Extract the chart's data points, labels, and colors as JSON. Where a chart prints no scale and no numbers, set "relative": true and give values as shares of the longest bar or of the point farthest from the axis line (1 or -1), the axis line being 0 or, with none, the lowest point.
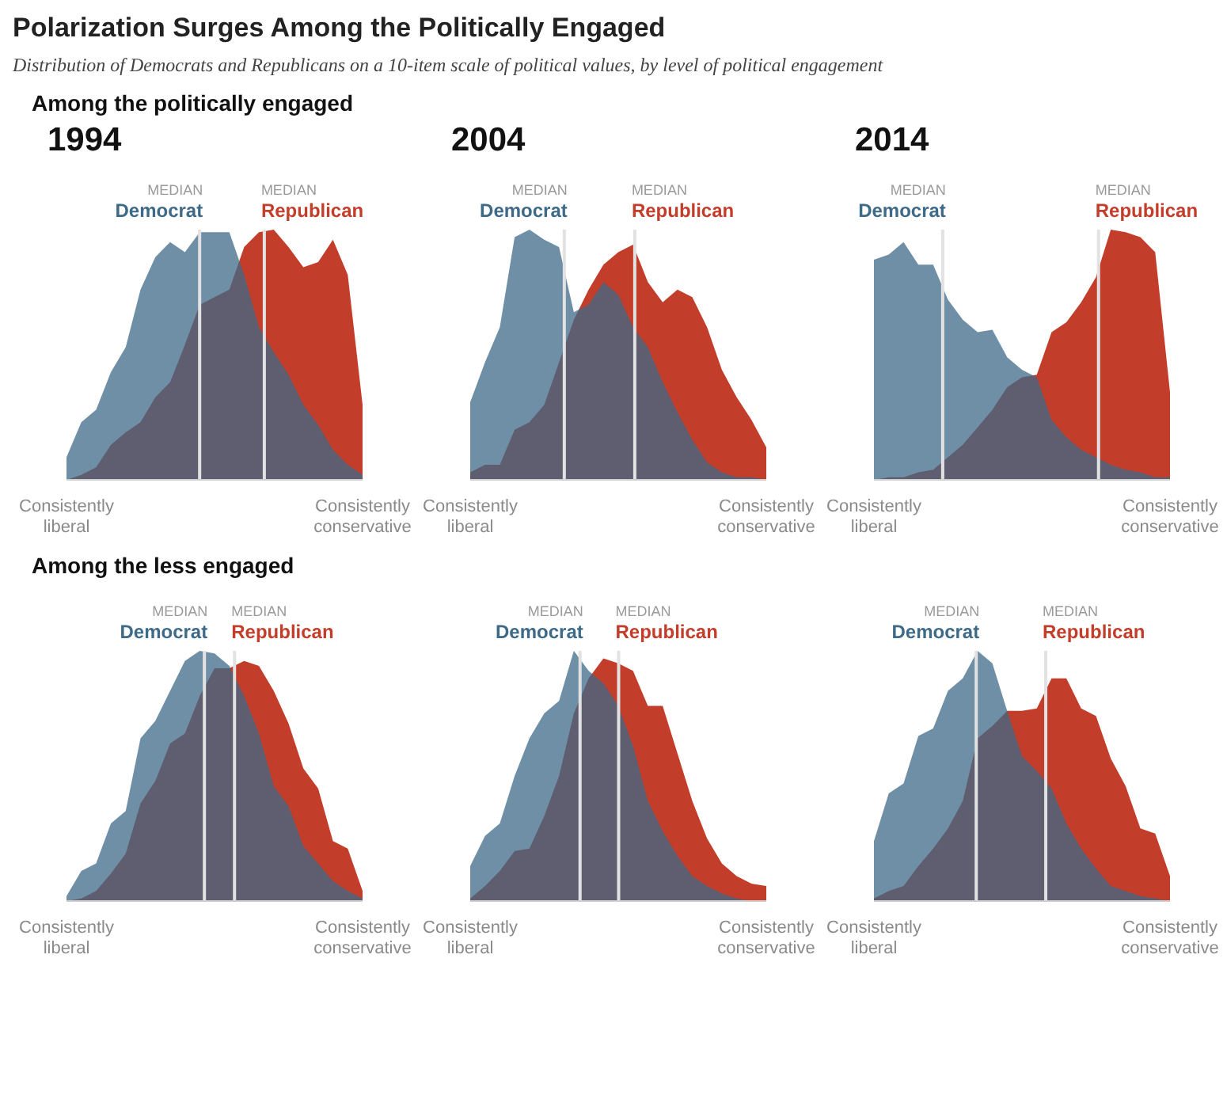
{
  "chart_data": [
    {
      "type": "area",
      "title": "1994",
      "annotations": [
        "Polarization Surges Among the Politically Engaged",
        "Distribution of Democrats and Republicans on a 10-item scale of political values, by level of political engagement",
        "Among the politically engaged",
        "MEDIAN",
        "MEDIAN"
      ],
      "relative": true,
      "categories": [
        "Consistently liberal",
        null,
        null,
        null,
        null,
        null,
        null,
        null,
        null,
        null,
        null,
        null,
        null,
        null,
        null,
        null,
        null,
        null,
        null,
        null,
        "Consistently conservative"
      ],
      "tick_labels": "x",
      "series": [
        {
          "name": "Republican",
          "color": "#c33d2b",
          "values": [
            0,
            0.02,
            0.05,
            0.14,
            0.19,
            0.23,
            0.33,
            0.39,
            0.54,
            0.7,
            0.73,
            0.76,
            0.93,
            0.99,
            1.0,
            0.93,
            0.85,
            0.87,
            0.96,
            0.82,
            0.3
          ]
        },
        {
          "name": "Democrat",
          "color": "#3e6a88",
          "values": [
            0.09,
            0.23,
            0.28,
            0.43,
            0.53,
            0.76,
            0.89,
            0.95,
            0.91,
            0.99,
            0.99,
            0.99,
            0.82,
            0.61,
            0.51,
            0.42,
            0.3,
            0.22,
            0.12,
            0.06,
            0.02
          ]
        }
      ]
    },
    {
      "type": "area",
      "title": "2004",
      "annotations": [
        "MEDIAN",
        "MEDIAN"
      ],
      "relative": true,
      "categories": [
        "Consistently liberal",
        null,
        null,
        null,
        null,
        null,
        null,
        null,
        null,
        null,
        null,
        null,
        null,
        null,
        null,
        null,
        null,
        null,
        null,
        null,
        "Consistently conservative"
      ],
      "tick_labels": "x",
      "series": [
        {
          "name": "Republican",
          "color": "#c33d2b",
          "values": [
            0.03,
            0.06,
            0.06,
            0.2,
            0.23,
            0.3,
            0.47,
            0.64,
            0.76,
            0.86,
            0.91,
            0.94,
            0.79,
            0.71,
            0.76,
            0.73,
            0.61,
            0.44,
            0.33,
            0.24,
            0.13
          ]
        },
        {
          "name": "Democrat",
          "color": "#3e6a88",
          "values": [
            0.31,
            0.47,
            0.61,
            0.97,
            1.0,
            0.96,
            0.93,
            0.67,
            0.7,
            0.79,
            0.74,
            0.61,
            0.53,
            0.39,
            0.27,
            0.16,
            0.07,
            0.03,
            0.01,
            0.01,
            0
          ]
        }
      ]
    },
    {
      "type": "area",
      "title": "2014",
      "annotations": [
        "MEDIAN",
        "MEDIAN"
      ],
      "relative": true,
      "categories": [
        "Consistently liberal",
        null,
        null,
        null,
        null,
        null,
        null,
        null,
        null,
        null,
        null,
        null,
        null,
        null,
        null,
        null,
        null,
        null,
        null,
        null,
        "Consistently conservative"
      ],
      "tick_labels": "x",
      "series": [
        {
          "name": "Republican",
          "color": "#c33d2b",
          "values": [
            0,
            0.01,
            0.01,
            0.03,
            0.04,
            0.09,
            0.14,
            0.21,
            0.28,
            0.37,
            0.41,
            0.42,
            0.59,
            0.63,
            0.71,
            0.81,
            1.0,
            0.99,
            0.97,
            0.91,
            0.35
          ]
        },
        {
          "name": "Democrat",
          "color": "#3e6a88",
          "values": [
            0.88,
            0.9,
            0.95,
            0.86,
            0.86,
            0.72,
            0.64,
            0.59,
            0.6,
            0.49,
            0.44,
            0.41,
            0.24,
            0.17,
            0.12,
            0.09,
            0.06,
            0.04,
            0.03,
            0.01,
            0.01
          ]
        }
      ]
    },
    {
      "type": "area",
      "annotations": [
        "Among the less engaged",
        "MEDIAN",
        "MEDIAN"
      ],
      "relative": true,
      "categories": [
        "Consistently liberal",
        null,
        null,
        null,
        null,
        null,
        null,
        null,
        null,
        null,
        null,
        null,
        null,
        null,
        null,
        null,
        null,
        null,
        null,
        null,
        "Consistently conservative"
      ],
      "tick_labels": "x",
      "series": [
        {
          "name": "Republican",
          "color": "#c33d2b",
          "values": [
            0,
            0.01,
            0.04,
            0.11,
            0.19,
            0.39,
            0.48,
            0.63,
            0.67,
            0.82,
            0.93,
            0.93,
            0.96,
            0.94,
            0.84,
            0.71,
            0.53,
            0.45,
            0.24,
            0.21,
            0.04
          ]
        },
        {
          "name": "Democrat",
          "color": "#3e6a88",
          "values": [
            0.02,
            0.12,
            0.15,
            0.31,
            0.36,
            0.65,
            0.72,
            0.84,
            0.96,
            1.0,
            0.99,
            0.94,
            0.82,
            0.67,
            0.46,
            0.38,
            0.22,
            0.15,
            0.08,
            0.04,
            0.01
          ]
        }
      ]
    },
    {
      "type": "area",
      "annotations": [
        "MEDIAN",
        "MEDIAN"
      ],
      "relative": true,
      "categories": [
        "Consistently liberal",
        null,
        null,
        null,
        null,
        null,
        null,
        null,
        null,
        null,
        null,
        null,
        null,
        null,
        null,
        null,
        null,
        null,
        null,
        null,
        "Consistently conservative"
      ],
      "tick_labels": "x",
      "series": [
        {
          "name": "Republican",
          "color": "#c33d2b",
          "values": [
            0.01,
            0.06,
            0.12,
            0.2,
            0.21,
            0.34,
            0.5,
            0.75,
            0.89,
            0.97,
            0.95,
            0.92,
            0.78,
            0.78,
            0.59,
            0.4,
            0.25,
            0.15,
            0.1,
            0.07,
            0.06
          ]
        },
        {
          "name": "Democrat",
          "color": "#3e6a88",
          "values": [
            0.14,
            0.26,
            0.31,
            0.5,
            0.65,
            0.75,
            0.8,
            1.0,
            0.92,
            0.87,
            0.78,
            0.62,
            0.4,
            0.28,
            0.18,
            0.1,
            0.06,
            0.03,
            0.01,
            0,
            0
          ]
        }
      ]
    },
    {
      "type": "area",
      "annotations": [
        "MEDIAN",
        "MEDIAN"
      ],
      "relative": true,
      "categories": [
        "Consistently liberal",
        null,
        null,
        null,
        null,
        null,
        null,
        null,
        null,
        null,
        null,
        null,
        null,
        null,
        null,
        null,
        null,
        null,
        null,
        null,
        "Consistently conservative"
      ],
      "tick_labels": "x",
      "series": [
        {
          "name": "Republican",
          "color": "#c33d2b",
          "values": [
            0.01,
            0.04,
            0.06,
            0.14,
            0.21,
            0.29,
            0.4,
            0.65,
            0.7,
            0.76,
            0.76,
            0.77,
            0.89,
            0.89,
            0.77,
            0.74,
            0.57,
            0.46,
            0.29,
            0.27,
            0.1
          ]
        },
        {
          "name": "Democrat",
          "color": "#3e6a88",
          "values": [
            0.24,
            0.43,
            0.47,
            0.66,
            0.69,
            0.84,
            0.89,
            1.0,
            0.95,
            0.76,
            0.58,
            0.52,
            0.45,
            0.31,
            0.21,
            0.13,
            0.06,
            0.04,
            0.02,
            0.01,
            0
          ]
        }
      ]
    }
  ]
}
